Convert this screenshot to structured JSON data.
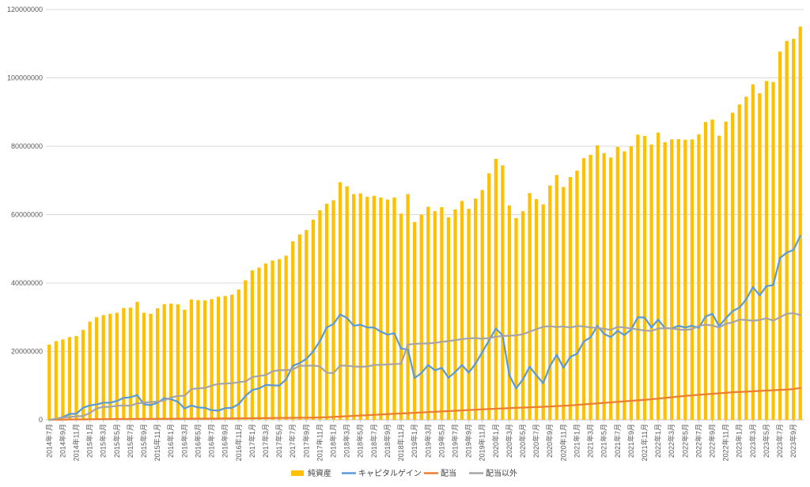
{
  "chart_data": {
    "type": "bar+line",
    "title": "",
    "xlabel": "",
    "ylabel": "",
    "ylim": [
      0,
      120000000
    ],
    "yticks": [
      0,
      20000000,
      40000000,
      60000000,
      80000000,
      100000000,
      120000000
    ],
    "ytick_labels": [
      "0",
      "20000000",
      "40000000",
      "60000000",
      "80000000",
      "100000000",
      "120000000"
    ],
    "grid": "horizontal",
    "legend_position": "bottom",
    "categories": [
      "2014年7月",
      "2014年8月",
      "2014年9月",
      "2014年10月",
      "2014年11月",
      "2014年12月",
      "2015年1月",
      "2015年2月",
      "2015年3月",
      "2015年4月",
      "2015年5月",
      "2015年6月",
      "2015年7月",
      "2015年8月",
      "2015年9月",
      "2015年10月",
      "2015年11月",
      "2015年12月",
      "2016年1月",
      "2016年2月",
      "2016年3月",
      "2016年4月",
      "2016年5月",
      "2016年6月",
      "2016年7月",
      "2016年8月",
      "2016年9月",
      "2016年10月",
      "2016年11月",
      "2016年12月",
      "2017年1月",
      "2017年2月",
      "2017年3月",
      "2017年4月",
      "2017年5月",
      "2017年6月",
      "2017年7月",
      "2017年8月",
      "2017年9月",
      "2017年10月",
      "2017年11月",
      "2017年12月",
      "2018年1月",
      "2018年2月",
      "2018年3月",
      "2018年4月",
      "2018年5月",
      "2018年6月",
      "2018年7月",
      "2018年8月",
      "2018年9月",
      "2018年10月",
      "2018年11月",
      "2018年12月",
      "2019年1月",
      "2019年2月",
      "2019年3月",
      "2019年4月",
      "2019年5月",
      "2019年6月",
      "2019年7月",
      "2019年8月",
      "2019年9月",
      "2019年10月",
      "2019年11月",
      "2019年12月",
      "2020年1月",
      "2020年2月",
      "2020年3月",
      "2020年4月",
      "2020年5月",
      "2020年6月",
      "2020年7月",
      "2020年8月",
      "2020年9月",
      "2020年10月",
      "2020年11月",
      "2020年12月",
      "2021年1月",
      "2021年2月",
      "2021年3月",
      "2021年4月",
      "2021年5月",
      "2021年6月",
      "2021年7月",
      "2021年8月",
      "2021年9月",
      "2021年10月",
      "2021年11月",
      "2021年12月",
      "2022年1月",
      "2022年2月",
      "2022年3月",
      "2022年4月",
      "2022年5月",
      "2022年6月",
      "2022年7月",
      "2022年8月",
      "2022年9月",
      "2022年10月",
      "2022年11月",
      "2022年12月",
      "2023年1月",
      "2023年2月",
      "2023年3月",
      "2023年4月",
      "2023年5月",
      "2023年6月",
      "2023年7月",
      "2023年8月",
      "2023年9月",
      "2023年10月"
    ],
    "x_tick_labels": [
      "2014年7月",
      "2014年9月",
      "2014年11月",
      "2015年1月",
      "2015年3月",
      "2015年5月",
      "2015年7月",
      "2015年9月",
      "2015年11月",
      "2016年1月",
      "2016年3月",
      "2016年5月",
      "2016年7月",
      "2016年9月",
      "2016年11月",
      "2017年1月",
      "2017年3月",
      "2017年5月",
      "2017年7月",
      "2017年9月",
      "2017年11月",
      "2018年1月",
      "2018年3月",
      "2018年5月",
      "2018年7月",
      "2018年9月",
      "2018年11月",
      "2019年1月",
      "2019年3月",
      "2019年5月",
      "2019年7月",
      "2019年9月",
      "2019年11月",
      "2020年1月",
      "2020年3月",
      "2020年5月",
      "2020年7月",
      "2020年9月",
      "2020年11月",
      "2021年1月",
      "2021年3月",
      "2021年5月",
      "2021年7月",
      "2021年9月",
      "2021年11月",
      "2022年1月",
      "2022年3月",
      "2022年5月",
      "2022年7月",
      "2022年9月",
      "2022年11月",
      "2023年1月",
      "2023年3月",
      "2023年5月",
      "2023年7月",
      "2023年9月"
    ],
    "colors": {
      "bar": "#FFC000",
      "capital_gain": "#5B9BD5",
      "dividend": "#ED7D31",
      "non_dividend": "#A5A5A5",
      "grid": "#D9D9D9",
      "axis": "#BFBFBF"
    },
    "series": [
      {
        "name": "純資産",
        "type": "bar",
        "color_key": "bar",
        "values": [
          22000000,
          23000000,
          23500000,
          24200000,
          24500000,
          26300000,
          28700000,
          30000000,
          30600000,
          31000000,
          31300000,
          32700000,
          32800000,
          34500000,
          31300000,
          31000000,
          32600000,
          33800000,
          34000000,
          33800000,
          32200000,
          35200000,
          35000000,
          34900000,
          35300000,
          36000000,
          36200000,
          36600000,
          38100000,
          40800000,
          43700000,
          44500000,
          45700000,
          46600000,
          47000000,
          48000000,
          52200000,
          54200000,
          55500000,
          58500000,
          61300000,
          63200000,
          64200000,
          69500000,
          68300000,
          66000000,
          66200000,
          65200000,
          65500000,
          65000000,
          64400000,
          65000000,
          60300000,
          66000000,
          57800000,
          60000000,
          62300000,
          61000000,
          62200000,
          59200000,
          61500000,
          64000000,
          61700000,
          64700000,
          67200000,
          72100000,
          76300000,
          74400000,
          62700000,
          59000000,
          61000000,
          66300000,
          64500000,
          63000000,
          68500000,
          71600000,
          68100000,
          71000000,
          72900000,
          76500000,
          77500000,
          80300000,
          78000000,
          76700000,
          79800000,
          78500000,
          80000000,
          83400000,
          83000000,
          80500000,
          84000000,
          81200000,
          82000000,
          82100000,
          81900000,
          82000000,
          83500000,
          87100000,
          87800000,
          83100000,
          87200000,
          89800000,
          92200000,
          94500000,
          98100000,
          95500000,
          99100000,
          98800000,
          107700000,
          110800000,
          111400000,
          115000000
        ]
      },
      {
        "name": "キャピタルゲイン",
        "type": "line",
        "color_key": "capital_gain",
        "values": [
          0,
          200000,
          800000,
          1700000,
          1800000,
          3500000,
          4200000,
          4500000,
          5000000,
          5000000,
          5500000,
          6400000,
          6600000,
          7200000,
          4500000,
          4300000,
          5000000,
          6300000,
          6000000,
          5300000,
          3300000,
          4200000,
          3600000,
          3500000,
          2800000,
          2700000,
          3400000,
          3500000,
          4600000,
          7000000,
          8700000,
          9200000,
          10200000,
          10100000,
          10000000,
          11800000,
          15800000,
          16600000,
          17800000,
          20000000,
          23000000,
          27000000,
          28000000,
          30800000,
          29800000,
          27500000,
          27800000,
          27000000,
          27000000,
          25800000,
          24900000,
          25300000,
          20800000,
          20600000,
          12200000,
          13700000,
          16000000,
          14500000,
          15200000,
          12300000,
          14000000,
          16000000,
          13800000,
          16400000,
          19800000,
          23200000,
          26700000,
          24700000,
          13000000,
          9200000,
          11800000,
          15500000,
          13000000,
          10700000,
          15700000,
          19000000,
          15200000,
          18400000,
          19300000,
          22900000,
          24100000,
          27500000,
          25100000,
          24200000,
          26000000,
          24800000,
          26400000,
          30000000,
          29900000,
          27000000,
          29300000,
          26800000,
          26700000,
          27500000,
          27000000,
          27500000,
          26900000,
          30200000,
          31000000,
          27400000,
          29700000,
          31800000,
          32800000,
          35200000,
          38800000,
          36400000,
          39100000,
          39400000,
          47300000,
          48900000,
          49700000,
          53800000
        ]
      },
      {
        "name": "配当",
        "type": "line",
        "color_key": "dividend",
        "values": [
          0,
          30000,
          60000,
          90000,
          110000,
          130000,
          150000,
          170000,
          190000,
          200000,
          210000,
          220000,
          240000,
          250000,
          260000,
          270000,
          280000,
          290000,
          300000,
          310000,
          320000,
          330000,
          340000,
          350000,
          360000,
          380000,
          390000,
          400000,
          420000,
          440000,
          460000,
          480000,
          500000,
          520000,
          540000,
          560000,
          580000,
          600000,
          620000,
          650000,
          700000,
          750000,
          850000,
          950000,
          1050000,
          1150000,
          1250000,
          1350000,
          1450000,
          1550000,
          1650000,
          1750000,
          1850000,
          1950000,
          2050000,
          2150000,
          2250000,
          2350000,
          2450000,
          2550000,
          2650000,
          2750000,
          2850000,
          2950000,
          3050000,
          3150000,
          3250000,
          3330000,
          3410000,
          3490000,
          3570000,
          3650000,
          3730000,
          3810000,
          3900000,
          4000000,
          4100000,
          4200000,
          4350000,
          4500000,
          4650000,
          4800000,
          4950000,
          5100000,
          5250000,
          5400000,
          5550000,
          5700000,
          5850000,
          6000000,
          6200000,
          6400000,
          6600000,
          6800000,
          7000000,
          7150000,
          7300000,
          7450000,
          7600000,
          7750000,
          7900000,
          8050000,
          8150000,
          8250000,
          8350000,
          8450000,
          8550000,
          8650000,
          8750000,
          8850000,
          9000000,
          9300000
        ]
      },
      {
        "name": "配当以外",
        "type": "line",
        "color_key": "non_dividend",
        "values": [
          0,
          300000,
          700000,
          800000,
          1000000,
          1100000,
          2000000,
          3300000,
          3800000,
          3800000,
          4100000,
          4200000,
          4100000,
          4800000,
          5000000,
          5200000,
          5300000,
          5700000,
          6500000,
          7000000,
          7000000,
          9000000,
          9200000,
          9300000,
          10000000,
          10500000,
          10600000,
          10700000,
          11000000,
          11200000,
          12500000,
          12800000,
          13100000,
          14200000,
          14500000,
          14500000,
          14700000,
          15800000,
          15800000,
          15900000,
          15600000,
          13800000,
          13600000,
          15900000,
          15800000,
          15600000,
          15500000,
          15600000,
          16000000,
          16100000,
          16200000,
          16300000,
          16400000,
          22000000,
          22200000,
          22300000,
          22300000,
          22500000,
          22800000,
          23000000,
          23300000,
          23600000,
          23800000,
          23900000,
          23700000,
          23900000,
          24300000,
          24500000,
          24600000,
          24700000,
          25000000,
          25800000,
          26500000,
          27200000,
          27400000,
          27100000,
          27300000,
          27000000,
          27400000,
          27300000,
          27000000,
          26900000,
          26600000,
          26300000,
          27200000,
          27000000,
          26700000,
          26400000,
          26100000,
          26000000,
          26700000,
          26800000,
          26700000,
          26400000,
          26300000,
          26500000,
          27500000,
          27800000,
          27600000,
          27000000,
          28100000,
          28500000,
          29300000,
          29200000,
          29000000,
          29200000,
          29700000,
          29000000,
          30000000,
          31000000,
          31200000,
          30600000
        ]
      }
    ],
    "legend": [
      "純資産",
      "キャピタルゲイン",
      "配当",
      "配当以外"
    ]
  }
}
